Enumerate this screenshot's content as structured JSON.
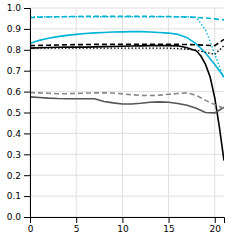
{
  "chart_data": {
    "type": "line",
    "xlim": [
      0,
      21
    ],
    "ylim": [
      0,
      1.0
    ],
    "xticks": [
      0,
      5,
      10,
      15,
      20
    ],
    "yticks": [
      {
        "value": 0,
        "label": "0.0"
      },
      0.1,
      0.2,
      0.3,
      0.4,
      0.5,
      0.6,
      0.7,
      0.8,
      0.9,
      {
        "value": 1,
        "label": "1.0"
      }
    ],
    "grid": true,
    "series": [
      {
        "color": "#00b4d8",
        "line_style": "solid",
        "x": [
          0,
          0.5,
          1,
          2,
          3,
          4,
          5,
          6,
          7,
          8,
          9,
          10,
          11,
          12,
          13,
          14,
          15,
          16,
          17,
          18,
          19,
          20,
          21
        ],
        "values": [
          0.83,
          0.838,
          0.845,
          0.855,
          0.863,
          0.869,
          0.874,
          0.878,
          0.881,
          0.883,
          0.885,
          0.886,
          0.887,
          0.887,
          0.885,
          0.883,
          0.88,
          0.874,
          0.858,
          0.828,
          0.785,
          0.73,
          0.67
        ]
      },
      {
        "color": "#00b4d8",
        "line_style": "dashed",
        "x": [
          0,
          1,
          2,
          3,
          4,
          5,
          6,
          7,
          8,
          9,
          10,
          11,
          12,
          13,
          14,
          15,
          16,
          17,
          18,
          19,
          20,
          21
        ],
        "values": [
          0.953,
          0.956,
          0.957,
          0.958,
          0.959,
          0.959,
          0.96,
          0.96,
          0.96,
          0.96,
          0.96,
          0.96,
          0.96,
          0.96,
          0.959,
          0.959,
          0.958,
          0.957,
          0.955,
          0.952,
          0.948,
          0.943
        ]
      },
      {
        "color": "#000000",
        "line_style": "solid",
        "x": [
          0,
          1,
          2,
          3,
          4,
          5,
          6,
          7,
          8,
          9,
          10,
          11,
          12,
          13,
          14,
          15,
          16,
          17,
          18,
          18.5,
          19,
          19.5,
          20,
          20.5,
          21
        ],
        "values": [
          0.808,
          0.81,
          0.811,
          0.812,
          0.813,
          0.813,
          0.813,
          0.814,
          0.815,
          0.816,
          0.817,
          0.818,
          0.819,
          0.82,
          0.82,
          0.82,
          0.819,
          0.81,
          0.795,
          0.77,
          0.73,
          0.67,
          0.57,
          0.43,
          0.27
        ]
      },
      {
        "color": "#000000",
        "line_style": "dashed",
        "x": [
          0,
          1,
          2,
          3,
          4,
          5,
          6,
          7,
          8,
          9,
          10,
          11,
          12,
          13,
          14,
          15,
          16,
          17,
          18,
          19,
          20,
          21
        ],
        "values": [
          0.82,
          0.821,
          0.822,
          0.823,
          0.824,
          0.825,
          0.825,
          0.826,
          0.826,
          0.826,
          0.826,
          0.826,
          0.826,
          0.826,
          0.826,
          0.826,
          0.826,
          0.825,
          0.824,
          0.822,
          0.82,
          0.85
        ]
      },
      {
        "color": "#000000",
        "line_style": "dotted",
        "x": [
          0,
          1,
          2,
          3,
          4,
          5,
          6,
          7,
          8,
          9,
          10,
          11,
          12,
          13,
          14,
          15,
          16,
          17,
          18,
          19,
          20,
          21
        ],
        "values": [
          0.808,
          0.808,
          0.808,
          0.808,
          0.808,
          0.808,
          0.808,
          0.808,
          0.808,
          0.808,
          0.808,
          0.808,
          0.808,
          0.808,
          0.808,
          0.808,
          0.806,
          0.803,
          0.798,
          0.788,
          0.778,
          0.82
        ]
      },
      {
        "color": "#555555",
        "line_style": "solid",
        "x": [
          0,
          1,
          2,
          3,
          4,
          5,
          6,
          7,
          8,
          9,
          10,
          11,
          12,
          13,
          14,
          15,
          16,
          17,
          18,
          19,
          20,
          21
        ],
        "values": [
          0.575,
          0.572,
          0.569,
          0.567,
          0.566,
          0.566,
          0.566,
          0.566,
          0.553,
          0.546,
          0.541,
          0.541,
          0.544,
          0.549,
          0.551,
          0.549,
          0.543,
          0.535,
          0.52,
          0.5,
          0.498,
          0.525
        ]
      },
      {
        "color": "#888888",
        "line_style": "dashed",
        "x": [
          0,
          1,
          2,
          3,
          4,
          5,
          6,
          7,
          8,
          9,
          10,
          11,
          12,
          13,
          14,
          15,
          16,
          17,
          18,
          19,
          20,
          21
        ],
        "values": [
          0.595,
          0.594,
          0.592,
          0.59,
          0.59,
          0.591,
          0.593,
          0.594,
          0.594,
          0.593,
          0.589,
          0.585,
          0.582,
          0.581,
          0.583,
          0.587,
          0.591,
          0.594,
          0.582,
          0.558,
          0.538,
          0.52
        ]
      },
      {
        "color": "#00b4d8",
        "line_style": "dotted",
        "x": [
          0,
          1,
          2,
          3,
          4,
          5,
          6,
          7,
          8,
          9,
          10,
          11,
          12,
          13,
          14,
          15,
          16,
          17,
          18,
          19,
          19.5,
          20,
          20.5,
          21
        ],
        "values": [
          0.958,
          0.958,
          0.958,
          0.958,
          0.958,
          0.958,
          0.958,
          0.958,
          0.958,
          0.958,
          0.958,
          0.958,
          0.958,
          0.958,
          0.958,
          0.958,
          0.958,
          0.958,
          0.956,
          0.895,
          0.84,
          0.78,
          0.72,
          0.66
        ]
      }
    ]
  }
}
